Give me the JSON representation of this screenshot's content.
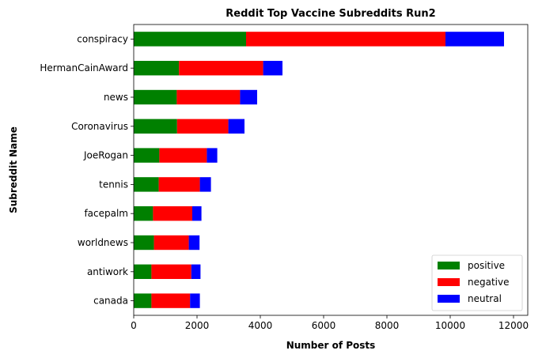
{
  "chart_data": {
    "type": "bar",
    "orientation": "horizontal",
    "stacked": true,
    "title": "Reddit Top Vaccine Subreddits Run2",
    "xlabel": "Number of Posts",
    "ylabel": "Subreddit Name",
    "categories": [
      "canada",
      "antiwork",
      "worldnews",
      "facepalm",
      "tennis",
      "JoeRogan",
      "Coronavirus",
      "news",
      "HermanCainAward",
      "conspiracy"
    ],
    "series": [
      {
        "name": "positive",
        "color": "#008000",
        "values": [
          560,
          560,
          640,
          610,
          790,
          810,
          1370,
          1360,
          1430,
          3550
        ]
      },
      {
        "name": "negative",
        "color": "#ff0000",
        "values": [
          1220,
          1260,
          1100,
          1240,
          1300,
          1500,
          1620,
          2000,
          2660,
          6300
        ]
      },
      {
        "name": "neutral",
        "color": "#0000ff",
        "values": [
          310,
          290,
          340,
          290,
          350,
          330,
          510,
          540,
          610,
          1850
        ]
      }
    ],
    "xlim": [
      0,
      12450
    ],
    "xticks": [
      "0",
      "2000",
      "4000",
      "6000",
      "8000",
      "10000",
      "12000"
    ],
    "grid": false,
    "legend_position": "lower-right"
  }
}
